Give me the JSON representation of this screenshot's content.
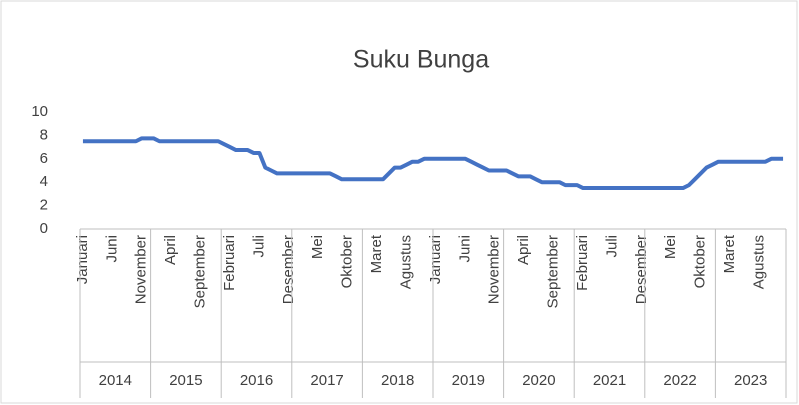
{
  "chart_data": {
    "type": "line",
    "title": "Suku Bunga",
    "categories": [
      "Januari",
      null,
      null,
      null,
      null,
      "Juni",
      null,
      null,
      null,
      null,
      "November",
      null,
      null,
      null,
      null,
      "April",
      null,
      null,
      null,
      null,
      "September",
      null,
      null,
      null,
      null,
      "Februari",
      null,
      null,
      null,
      null,
      "Juli",
      null,
      null,
      null,
      null,
      "Desember",
      null,
      null,
      null,
      null,
      "Mei",
      null,
      null,
      null,
      null,
      "Oktober",
      null,
      null,
      null,
      null,
      "Maret",
      null,
      null,
      null,
      null,
      "Agustus",
      null,
      null,
      null,
      null,
      "Januari",
      null,
      null,
      null,
      null,
      "Juni",
      null,
      null,
      null,
      null,
      "November",
      null,
      null,
      null,
      null,
      "April",
      null,
      null,
      null,
      null,
      "September",
      null,
      null,
      null,
      null,
      "Februari",
      null,
      null,
      null,
      null,
      "Juli",
      null,
      null,
      null,
      null,
      "Desember",
      null,
      null,
      null,
      null,
      "Mei",
      null,
      null,
      null,
      null,
      "Oktober",
      null,
      null,
      null,
      null,
      "Maret",
      null,
      null,
      null,
      null,
      "Agustus",
      null,
      null,
      null,
      null
    ],
    "years": [
      "2014",
      "2015",
      "2016",
      "2017",
      "2018",
      "2019",
      "2020",
      "2021",
      "2022",
      "2023"
    ],
    "series": [
      {
        "name": "Suku Bunga",
        "color": "#4472c4",
        "values": [
          7.5,
          7.5,
          7.5,
          7.5,
          7.5,
          7.5,
          7.5,
          7.5,
          7.5,
          7.5,
          7.75,
          7.75,
          7.75,
          7.5,
          7.5,
          7.5,
          7.5,
          7.5,
          7.5,
          7.5,
          7.5,
          7.5,
          7.5,
          7.5,
          7.25,
          7.0,
          6.75,
          6.75,
          6.75,
          6.5,
          6.5,
          5.25,
          5.0,
          4.75,
          4.75,
          4.75,
          4.75,
          4.75,
          4.75,
          4.75,
          4.75,
          4.75,
          4.75,
          4.5,
          4.25,
          4.25,
          4.25,
          4.25,
          4.25,
          4.25,
          4.25,
          4.25,
          4.75,
          5.25,
          5.25,
          5.5,
          5.75,
          5.75,
          6.0,
          6.0,
          6.0,
          6.0,
          6.0,
          6.0,
          6.0,
          6.0,
          5.75,
          5.5,
          5.25,
          5.0,
          5.0,
          5.0,
          5.0,
          4.75,
          4.5,
          4.5,
          4.5,
          4.25,
          4.0,
          4.0,
          4.0,
          4.0,
          3.75,
          3.75,
          3.75,
          3.5,
          3.5,
          3.5,
          3.5,
          3.5,
          3.5,
          3.5,
          3.5,
          3.5,
          3.5,
          3.5,
          3.5,
          3.5,
          3.5,
          3.5,
          3.5,
          3.5,
          3.5,
          3.75,
          4.25,
          4.75,
          5.25,
          5.5,
          5.75,
          5.75,
          5.75,
          5.75,
          5.75,
          5.75,
          5.75,
          5.75,
          5.75,
          6.0,
          6.0,
          6.0
        ]
      }
    ],
    "ylim": [
      0,
      10
    ],
    "yticks": [
      0,
      2,
      4,
      6,
      8,
      10
    ],
    "grid": false
  }
}
